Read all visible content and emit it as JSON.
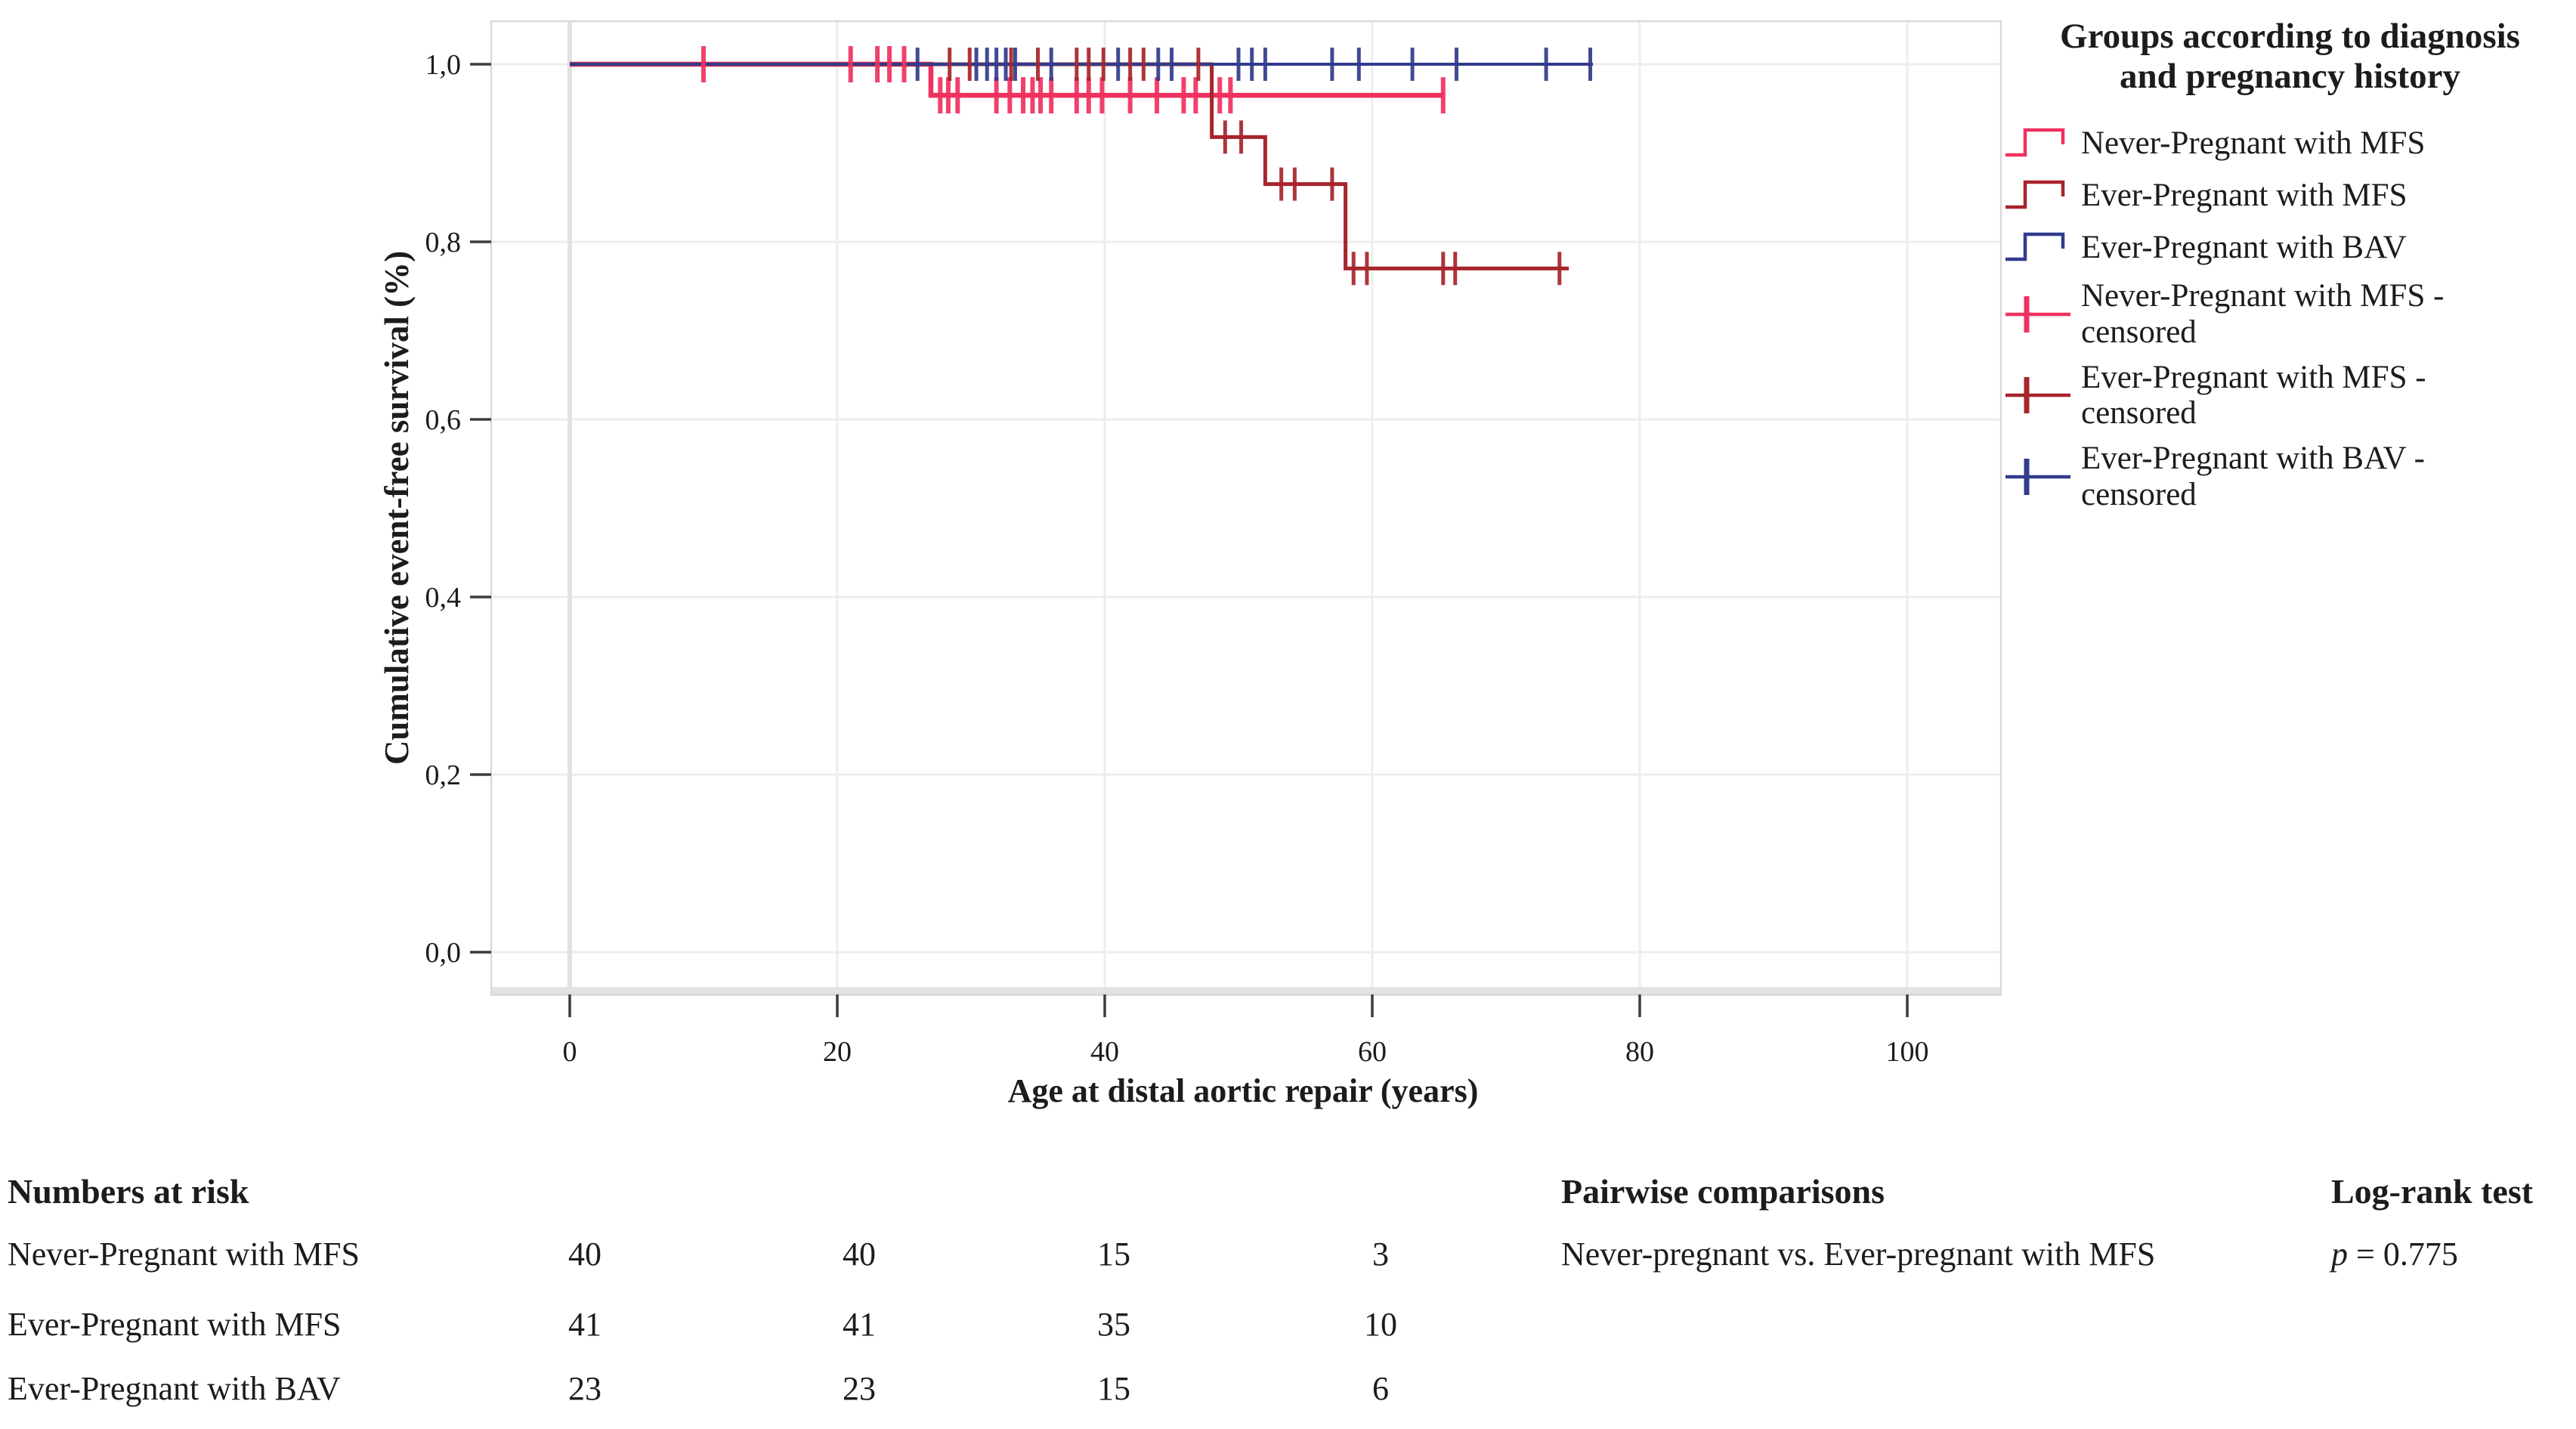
{
  "legend": {
    "title_line1": "Groups according to diagnosis",
    "title_line2": "and pregnancy history",
    "items": [
      {
        "line1": "Never-Pregnant with MFS",
        "line2": "",
        "color": "#F0315F",
        "glyph": "step"
      },
      {
        "line1": "Ever-Pregnant with MFS",
        "line2": "",
        "color": "#A8242B",
        "glyph": "step"
      },
      {
        "line1": "Ever-Pregnant with BAV",
        "line2": "",
        "color": "#323B8C",
        "glyph": "step"
      },
      {
        "line1": "Never-Pregnant with MFS -",
        "line2": "censored",
        "color": "#F0315F",
        "glyph": "censor"
      },
      {
        "line1": "Ever-Pregnant with MFS -",
        "line2": "censored",
        "color": "#A8242B",
        "glyph": "censor"
      },
      {
        "line1": "Ever-Pregnant with BAV -",
        "line2": "censored",
        "color": "#323B8C",
        "glyph": "censor"
      }
    ]
  },
  "risk_table": {
    "title": "Numbers at risk",
    "rows": [
      {
        "label": "Never-Pregnant with MFS",
        "values": [
          "40",
          "40",
          "15",
          "3"
        ]
      },
      {
        "label": "Ever-Pregnant with MFS",
        "values": [
          "41",
          "41",
          "35",
          "10"
        ]
      },
      {
        "label": "Ever-Pregnant with BAV",
        "values": [
          "23",
          "23",
          "15",
          "6"
        ]
      }
    ]
  },
  "pairwise": {
    "title": "Pairwise comparisons",
    "test_title": "Log-rank test",
    "comparison": "Never-pregnant vs. Ever-pregnant with MFS",
    "p_symbol": "p",
    "p_value": " = 0.775"
  },
  "chart_data": {
    "type": "line",
    "subtype": "kaplan-meier-step",
    "xlabel": "Age at distal aortic repair (years)",
    "ylabel": "Cumulative event-free survival (%)",
    "xticks": [
      0,
      20,
      40,
      60,
      80,
      100
    ],
    "yticks": [
      0.0,
      0.2,
      0.4,
      0.6,
      0.8,
      1.0
    ],
    "ytick_labels": [
      "0,0",
      "0,2",
      "0,4",
      "0,6",
      "0,8",
      "1,0"
    ],
    "xlim": [
      -5.9,
      107.2
    ],
    "ylim": [
      -0.047,
      1.048
    ],
    "grid": true,
    "legend_position": "right",
    "series": [
      {
        "name": "Never-Pregnant with MFS",
        "color": "#F0315F",
        "line_width": 6.5,
        "steps": [
          [
            0,
            1.0
          ],
          [
            27,
            1.0
          ],
          [
            27,
            0.965
          ],
          [
            65.3,
            0.965
          ]
        ],
        "censored": [
          [
            10,
            1.0
          ],
          [
            21,
            1.0
          ],
          [
            23,
            1.0
          ],
          [
            23.9,
            1.0
          ],
          [
            25,
            1.0
          ],
          [
            27.7,
            0.965
          ],
          [
            28.3,
            0.965
          ],
          [
            29,
            0.965
          ],
          [
            31.9,
            0.965
          ],
          [
            32.9,
            0.965
          ],
          [
            33.9,
            0.965
          ],
          [
            34.6,
            0.965
          ],
          [
            35.2,
            0.965
          ],
          [
            36,
            0.965
          ],
          [
            37.9,
            0.965
          ],
          [
            38.8,
            0.965
          ],
          [
            39.8,
            0.965
          ],
          [
            41.9,
            0.965
          ],
          [
            43.9,
            0.965
          ],
          [
            45.9,
            0.965
          ],
          [
            46.8,
            0.965
          ],
          [
            48.6,
            0.965
          ],
          [
            49.4,
            0.965
          ],
          [
            65.3,
            0.965
          ]
        ]
      },
      {
        "name": "Ever-Pregnant with MFS",
        "color": "#A8242B",
        "line_width": 5,
        "steps": [
          [
            0,
            1.0
          ],
          [
            48,
            1.0
          ],
          [
            48,
            0.918
          ],
          [
            52,
            0.918
          ],
          [
            52,
            0.865
          ],
          [
            58,
            0.865
          ],
          [
            58,
            0.77
          ],
          [
            74.7,
            0.77
          ]
        ],
        "censored": [
          [
            28.4,
            1.0
          ],
          [
            29.9,
            1.0
          ],
          [
            33,
            1.0
          ],
          [
            35,
            1.0
          ],
          [
            37.9,
            1.0
          ],
          [
            38.8,
            1.0
          ],
          [
            39.9,
            1.0
          ],
          [
            41.9,
            1.0
          ],
          [
            42.9,
            1.0
          ],
          [
            47,
            1.0
          ],
          [
            49,
            0.918
          ],
          [
            50.2,
            0.918
          ],
          [
            53.2,
            0.865
          ],
          [
            54.2,
            0.865
          ],
          [
            57,
            0.865
          ],
          [
            58.6,
            0.77
          ],
          [
            59.6,
            0.77
          ],
          [
            65.3,
            0.77
          ],
          [
            66.2,
            0.77
          ],
          [
            74,
            0.77
          ]
        ]
      },
      {
        "name": "Ever-Pregnant with BAV",
        "color": "#323B8C",
        "line_width": 4,
        "steps": [
          [
            0,
            1.0
          ],
          [
            76.5,
            1.0
          ]
        ],
        "censored": [
          [
            26,
            1.0
          ],
          [
            30.4,
            1.0
          ],
          [
            31.2,
            1.0
          ],
          [
            31.9,
            1.0
          ],
          [
            32.6,
            1.0
          ],
          [
            33.3,
            1.0
          ],
          [
            36,
            1.0
          ],
          [
            41,
            1.0
          ],
          [
            44,
            1.0
          ],
          [
            45,
            1.0
          ],
          [
            50,
            1.0
          ],
          [
            51,
            1.0
          ],
          [
            52,
            1.0
          ],
          [
            57,
            1.0
          ],
          [
            59,
            1.0
          ],
          [
            63,
            1.0
          ],
          [
            66.3,
            1.0
          ],
          [
            73,
            1.0
          ],
          [
            76.3,
            1.0
          ]
        ]
      }
    ]
  }
}
